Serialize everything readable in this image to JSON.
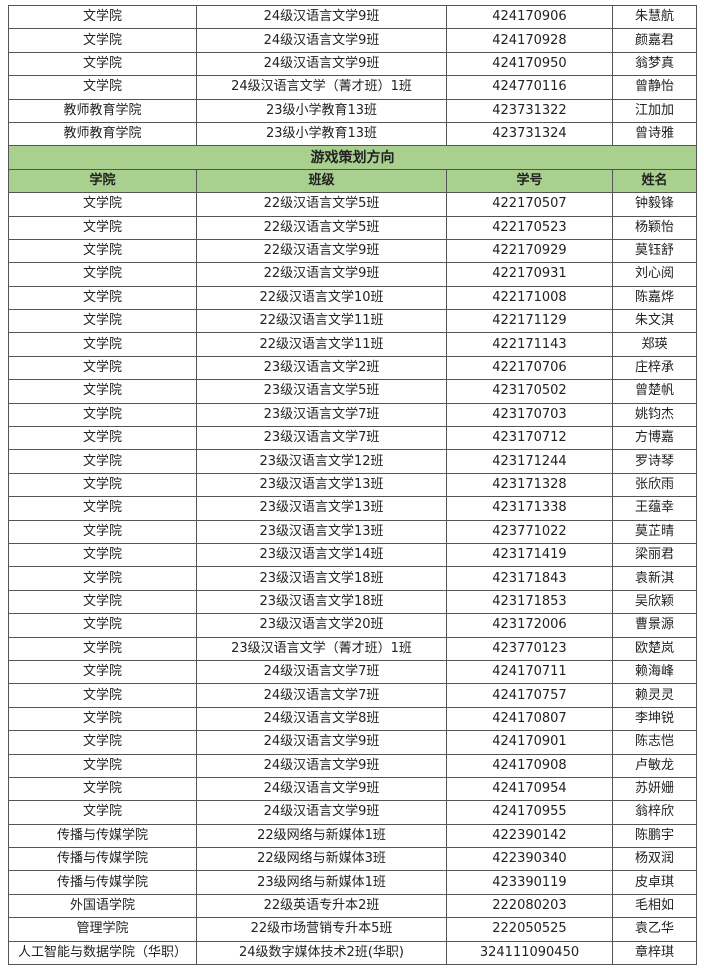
{
  "colors": {
    "header_fill": "#a9d08e",
    "border": "#555555"
  },
  "top_rows": [
    [
      "文学院",
      "24级汉语言文学9班",
      "424170906",
      "朱慧航"
    ],
    [
      "文学院",
      "24级汉语言文学9班",
      "424170928",
      "颜嘉君"
    ],
    [
      "文学院",
      "24级汉语言文学9班",
      "424170950",
      "翁梦真"
    ],
    [
      "文学院",
      "24级汉语言文学（菁才班）1班",
      "424770116",
      "曾静怡"
    ],
    [
      "教师教育学院",
      "23级小学教育13班",
      "423731322",
      "江加加"
    ],
    [
      "教师教育学院",
      "23级小学教育13班",
      "423731324",
      "曾诗雅"
    ]
  ],
  "section_title": "游戏策划方向",
  "headers": [
    "学院",
    "班级",
    "学号",
    "姓名"
  ],
  "rows": [
    [
      "文学院",
      "22级汉语言文学5班",
      "422170507",
      "钟毅锋"
    ],
    [
      "文学院",
      "22级汉语言文学5班",
      "422170523",
      "杨颖怡"
    ],
    [
      "文学院",
      "22级汉语言文学9班",
      "422170929",
      "莫钰舒"
    ],
    [
      "文学院",
      "22级汉语言文学9班",
      "422170931",
      "刘心阅"
    ],
    [
      "文学院",
      "22级汉语言文学10班",
      "422171008",
      "陈嘉烨"
    ],
    [
      "文学院",
      "22级汉语言文学11班",
      "422171129",
      "朱文淇"
    ],
    [
      "文学院",
      "22级汉语言文学11班",
      "422171143",
      "郑瑛"
    ],
    [
      "文学院",
      "23级汉语言文学2班",
      "422170706",
      "庄梓承"
    ],
    [
      "文学院",
      "23级汉语言文学5班",
      "423170502",
      "曾楚帆"
    ],
    [
      "文学院",
      "23级汉语言文学7班",
      "423170703",
      "姚钧杰"
    ],
    [
      "文学院",
      "23级汉语言文学7班",
      "423170712",
      "方博嘉"
    ],
    [
      "文学院",
      "23级汉语言文学12班",
      "423171244",
      "罗诗琴"
    ],
    [
      "文学院",
      "23级汉语言文学13班",
      "423171328",
      "张欣雨"
    ],
    [
      "文学院",
      "23级汉语言文学13班",
      "423171338",
      "王蕴幸"
    ],
    [
      "文学院",
      "23级汉语言文学13班",
      "423771022",
      "莫芷晴"
    ],
    [
      "文学院",
      "23级汉语言文学14班",
      "423171419",
      "梁丽君"
    ],
    [
      "文学院",
      "23级汉语言文学18班",
      "423171843",
      "袁新淇"
    ],
    [
      "文学院",
      "23级汉语言文学18班",
      "423171853",
      "吴欣颖"
    ],
    [
      "文学院",
      "23级汉语言文学20班",
      "423172006",
      "曹景源"
    ],
    [
      "文学院",
      "23级汉语言文学（菁才班）1班",
      "423770123",
      "欧楚岚"
    ],
    [
      "文学院",
      "24级汉语言文学7班",
      "424170711",
      "赖海峰"
    ],
    [
      "文学院",
      "24级汉语言文学7班",
      "424170757",
      "赖灵灵"
    ],
    [
      "文学院",
      "24级汉语言文学8班",
      "424170807",
      "李坤锐"
    ],
    [
      "文学院",
      "24级汉语言文学9班",
      "424170901",
      "陈志恺"
    ],
    [
      "文学院",
      "24级汉语言文学9班",
      "424170908",
      "卢敏龙"
    ],
    [
      "文学院",
      "24级汉语言文学9班",
      "424170954",
      "苏妍姗"
    ],
    [
      "文学院",
      "24级汉语言文学9班",
      "424170955",
      "翁梓欣"
    ],
    [
      "传播与传媒学院",
      "22级网络与新媒体1班",
      "422390142",
      "陈鹏宇"
    ],
    [
      "传播与传媒学院",
      "22级网络与新媒体3班",
      "422390340",
      "杨双润"
    ],
    [
      "传播与传媒学院",
      "23级网络与新媒体1班",
      "423390119",
      "皮卓琪"
    ],
    [
      "外国语学院",
      "22级英语专升本2班",
      "222080203",
      "毛相如"
    ],
    [
      "管理学院",
      "22级市场营销专升本5班",
      "222050525",
      "袁乙华"
    ],
    [
      "人工智能与数据学院（华职）",
      "24级数字媒体技术2班(华职)",
      "324111090450",
      "章梓琪"
    ]
  ]
}
